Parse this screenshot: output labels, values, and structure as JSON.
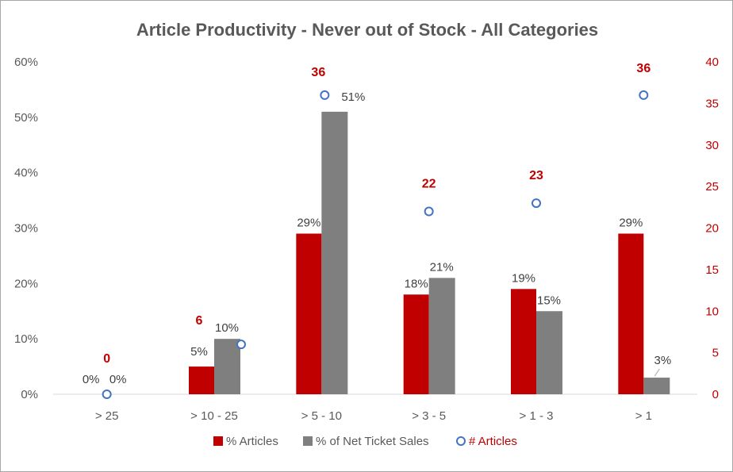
{
  "chart_data": {
    "type": "bar",
    "title": "Article Productivity - Never out of Stock - All Categories",
    "categories": [
      "> 25",
      "> 10 - 25",
      "> 5 - 10",
      "> 3 - 5",
      "> 1 - 3",
      "> 1"
    ],
    "series": [
      {
        "name": "% Articles",
        "kind": "bar",
        "axis": "left",
        "color": "#c00000",
        "values": [
          0,
          5,
          29,
          18,
          19,
          29
        ],
        "labels": [
          "0%",
          "5%",
          "29%",
          "18%",
          "19%",
          "29%"
        ]
      },
      {
        "name": "% of Net Ticket Sales",
        "kind": "bar",
        "axis": "left",
        "color": "#7f7f7f",
        "values": [
          0,
          10,
          51,
          21,
          15,
          3
        ],
        "labels": [
          "0%",
          "10%",
          "51%",
          "21%",
          "15%",
          "3%"
        ]
      },
      {
        "name": "# Articles",
        "kind": "scatter",
        "axis": "right",
        "color": "#4472c4",
        "values": [
          0,
          6,
          36,
          22,
          23,
          36
        ],
        "labels": [
          "0",
          "6",
          "36",
          "22",
          "23",
          "36"
        ]
      }
    ],
    "y_left": {
      "ylim": [
        0,
        60
      ],
      "ticks": [
        0,
        10,
        20,
        30,
        40,
        50,
        60
      ],
      "tick_labels": [
        "0%",
        "10%",
        "20%",
        "30%",
        "40%",
        "50%",
        "60%"
      ]
    },
    "y_right": {
      "ylim": [
        0,
        40
      ],
      "ticks": [
        0,
        5,
        10,
        15,
        20,
        25,
        30,
        35,
        40
      ],
      "tick_labels": [
        "0",
        "5",
        "10",
        "15",
        "20",
        "25",
        "30",
        "35",
        "40"
      ]
    },
    "legend": {
      "position": "bottom",
      "entries": [
        "% Articles",
        "% of Net Ticket Sales",
        "# Articles"
      ]
    },
    "grid": false
  }
}
